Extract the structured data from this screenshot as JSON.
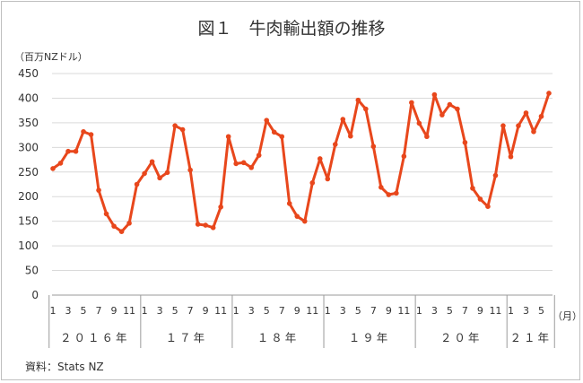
{
  "chart_data": {
    "type": "line",
    "title": "図１　牛肉輸出額の推移",
    "ylabel": "（百万NZドル）",
    "xunit": "（月）",
    "ylim": [
      0,
      450
    ],
    "yticks": [
      "0",
      "50",
      "100",
      "150",
      "200",
      "250",
      "300",
      "350",
      "400",
      "450"
    ],
    "grid": "horizontal",
    "legend": "none",
    "color": "#E8471C",
    "source": "資料：Stats NZ",
    "years": [
      {
        "label": "２０１６年",
        "months": 12
      },
      {
        "label": "１７年",
        "months": 12
      },
      {
        "label": "１８年",
        "months": 12
      },
      {
        "label": "１９年",
        "months": 12
      },
      {
        "label": "２０年",
        "months": 12
      },
      {
        "label": "２１年",
        "months": 6
      }
    ],
    "month_labels": [
      "1",
      "",
      "3",
      "",
      "5",
      "",
      "7",
      "",
      "9",
      "",
      "11",
      ""
    ],
    "series": [
      {
        "values": [
          257,
          268,
          292,
          292,
          332,
          326,
          213,
          165,
          140,
          129,
          146,
          225,
          247,
          271,
          238,
          249,
          344,
          336,
          254,
          144,
          142,
          137,
          179,
          322,
          267,
          269,
          259,
          284,
          355,
          331,
          322,
          186,
          160,
          150,
          228,
          277,
          236,
          306,
          357,
          323,
          396,
          378,
          302,
          219,
          204,
          207,
          282,
          391,
          349,
          322,
          407,
          366,
          387,
          378,
          310,
          217,
          195,
          180,
          243,
          344,
          281,
          344,
          370,
          332,
          363,
          410
        ]
      }
    ]
  }
}
